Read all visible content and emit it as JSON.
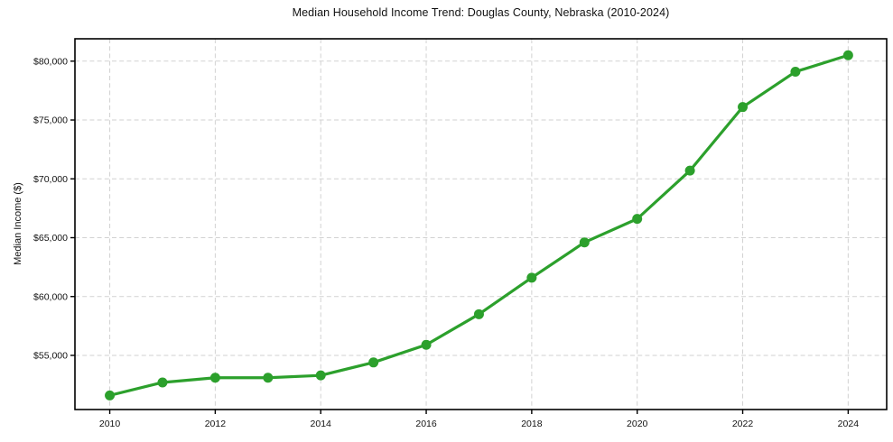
{
  "chart_data": {
    "type": "line",
    "title": "Median Household Income Trend: Douglas County, Nebraska (2010-2024)",
    "xlabel": "",
    "ylabel": "Median Income ($)",
    "x": [
      2010,
      2011,
      2012,
      2013,
      2014,
      2015,
      2016,
      2017,
      2018,
      2019,
      2020,
      2021,
      2022,
      2023,
      2024
    ],
    "values": [
      51600,
      52700,
      53100,
      53100,
      53300,
      54400,
      55900,
      58500,
      61600,
      64600,
      66600,
      70700,
      76100,
      79100,
      80500
    ],
    "x_ticks": [
      2010,
      2012,
      2014,
      2016,
      2018,
      2020,
      2022,
      2024
    ],
    "x_tick_labels": [
      "2010",
      "2012",
      "2014",
      "2016",
      "2018",
      "2020",
      "2022",
      "2024"
    ],
    "y_ticks": [
      55000,
      60000,
      65000,
      70000,
      75000,
      80000
    ],
    "y_tick_labels": [
      "$55,000",
      "$60,000",
      "$65,000",
      "$70,000",
      "$75,000",
      "$80,000"
    ],
    "xlim": [
      2009.34,
      2024.73
    ],
    "ylim": [
      50400,
      81900
    ],
    "grid": true,
    "legend": "none",
    "line_color": "#2ca02c",
    "grid_color": "#d2d2d2",
    "spine_color": "#000000",
    "marker": "circle"
  }
}
